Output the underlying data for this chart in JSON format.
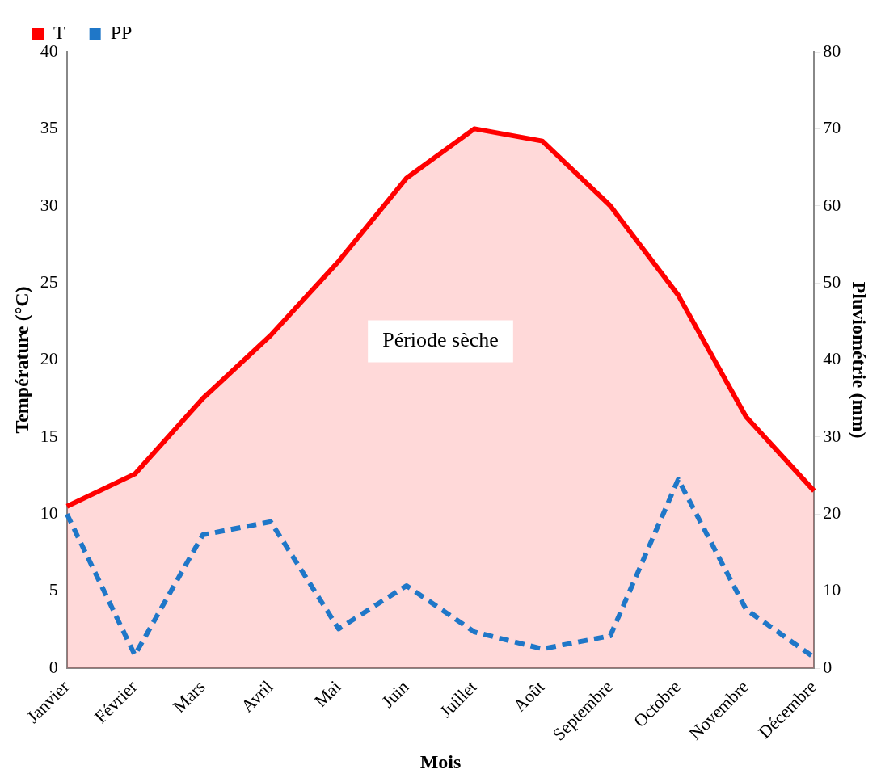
{
  "chart_data": {
    "type": "line",
    "xlabel": "Mois",
    "ylabel": "Température (°C)",
    "y2label": "Pluviométrie (mm)",
    "categories": [
      "Janvier",
      "Février",
      "Mars",
      "Avril",
      "Mai",
      "Juin",
      "Juillet",
      "Août",
      "Septembre",
      "Octobre",
      "Novembre",
      "Décembre"
    ],
    "series": [
      {
        "name": "T",
        "type": "area",
        "color": "#ff0000",
        "line_style": "solid",
        "values": [
          10.5,
          12.6,
          17.5,
          21.6,
          26.4,
          31.8,
          35.0,
          34.2,
          30.0,
          24.2,
          16.3,
          11.5
        ]
      },
      {
        "name": "PP",
        "color": "#1f77c8",
        "line_style": "dashed",
        "axis": "y2",
        "values": [
          20,
          1.7,
          17.3,
          19.0,
          5.1,
          10.7,
          4.7,
          2.5,
          4.2,
          24.5,
          7.6,
          1.4
        ]
      }
    ],
    "ylim": [
      0,
      40
    ],
    "yticks": [
      0,
      5,
      10,
      15,
      20,
      25,
      30,
      35,
      40
    ],
    "y2lim": [
      0,
      80
    ],
    "y2ticks": [
      0,
      10,
      20,
      30,
      40,
      50,
      60,
      70,
      80
    ],
    "annotations": [
      "Période sèche"
    ],
    "grid": false,
    "legend": "top left",
    "marker": "none"
  }
}
